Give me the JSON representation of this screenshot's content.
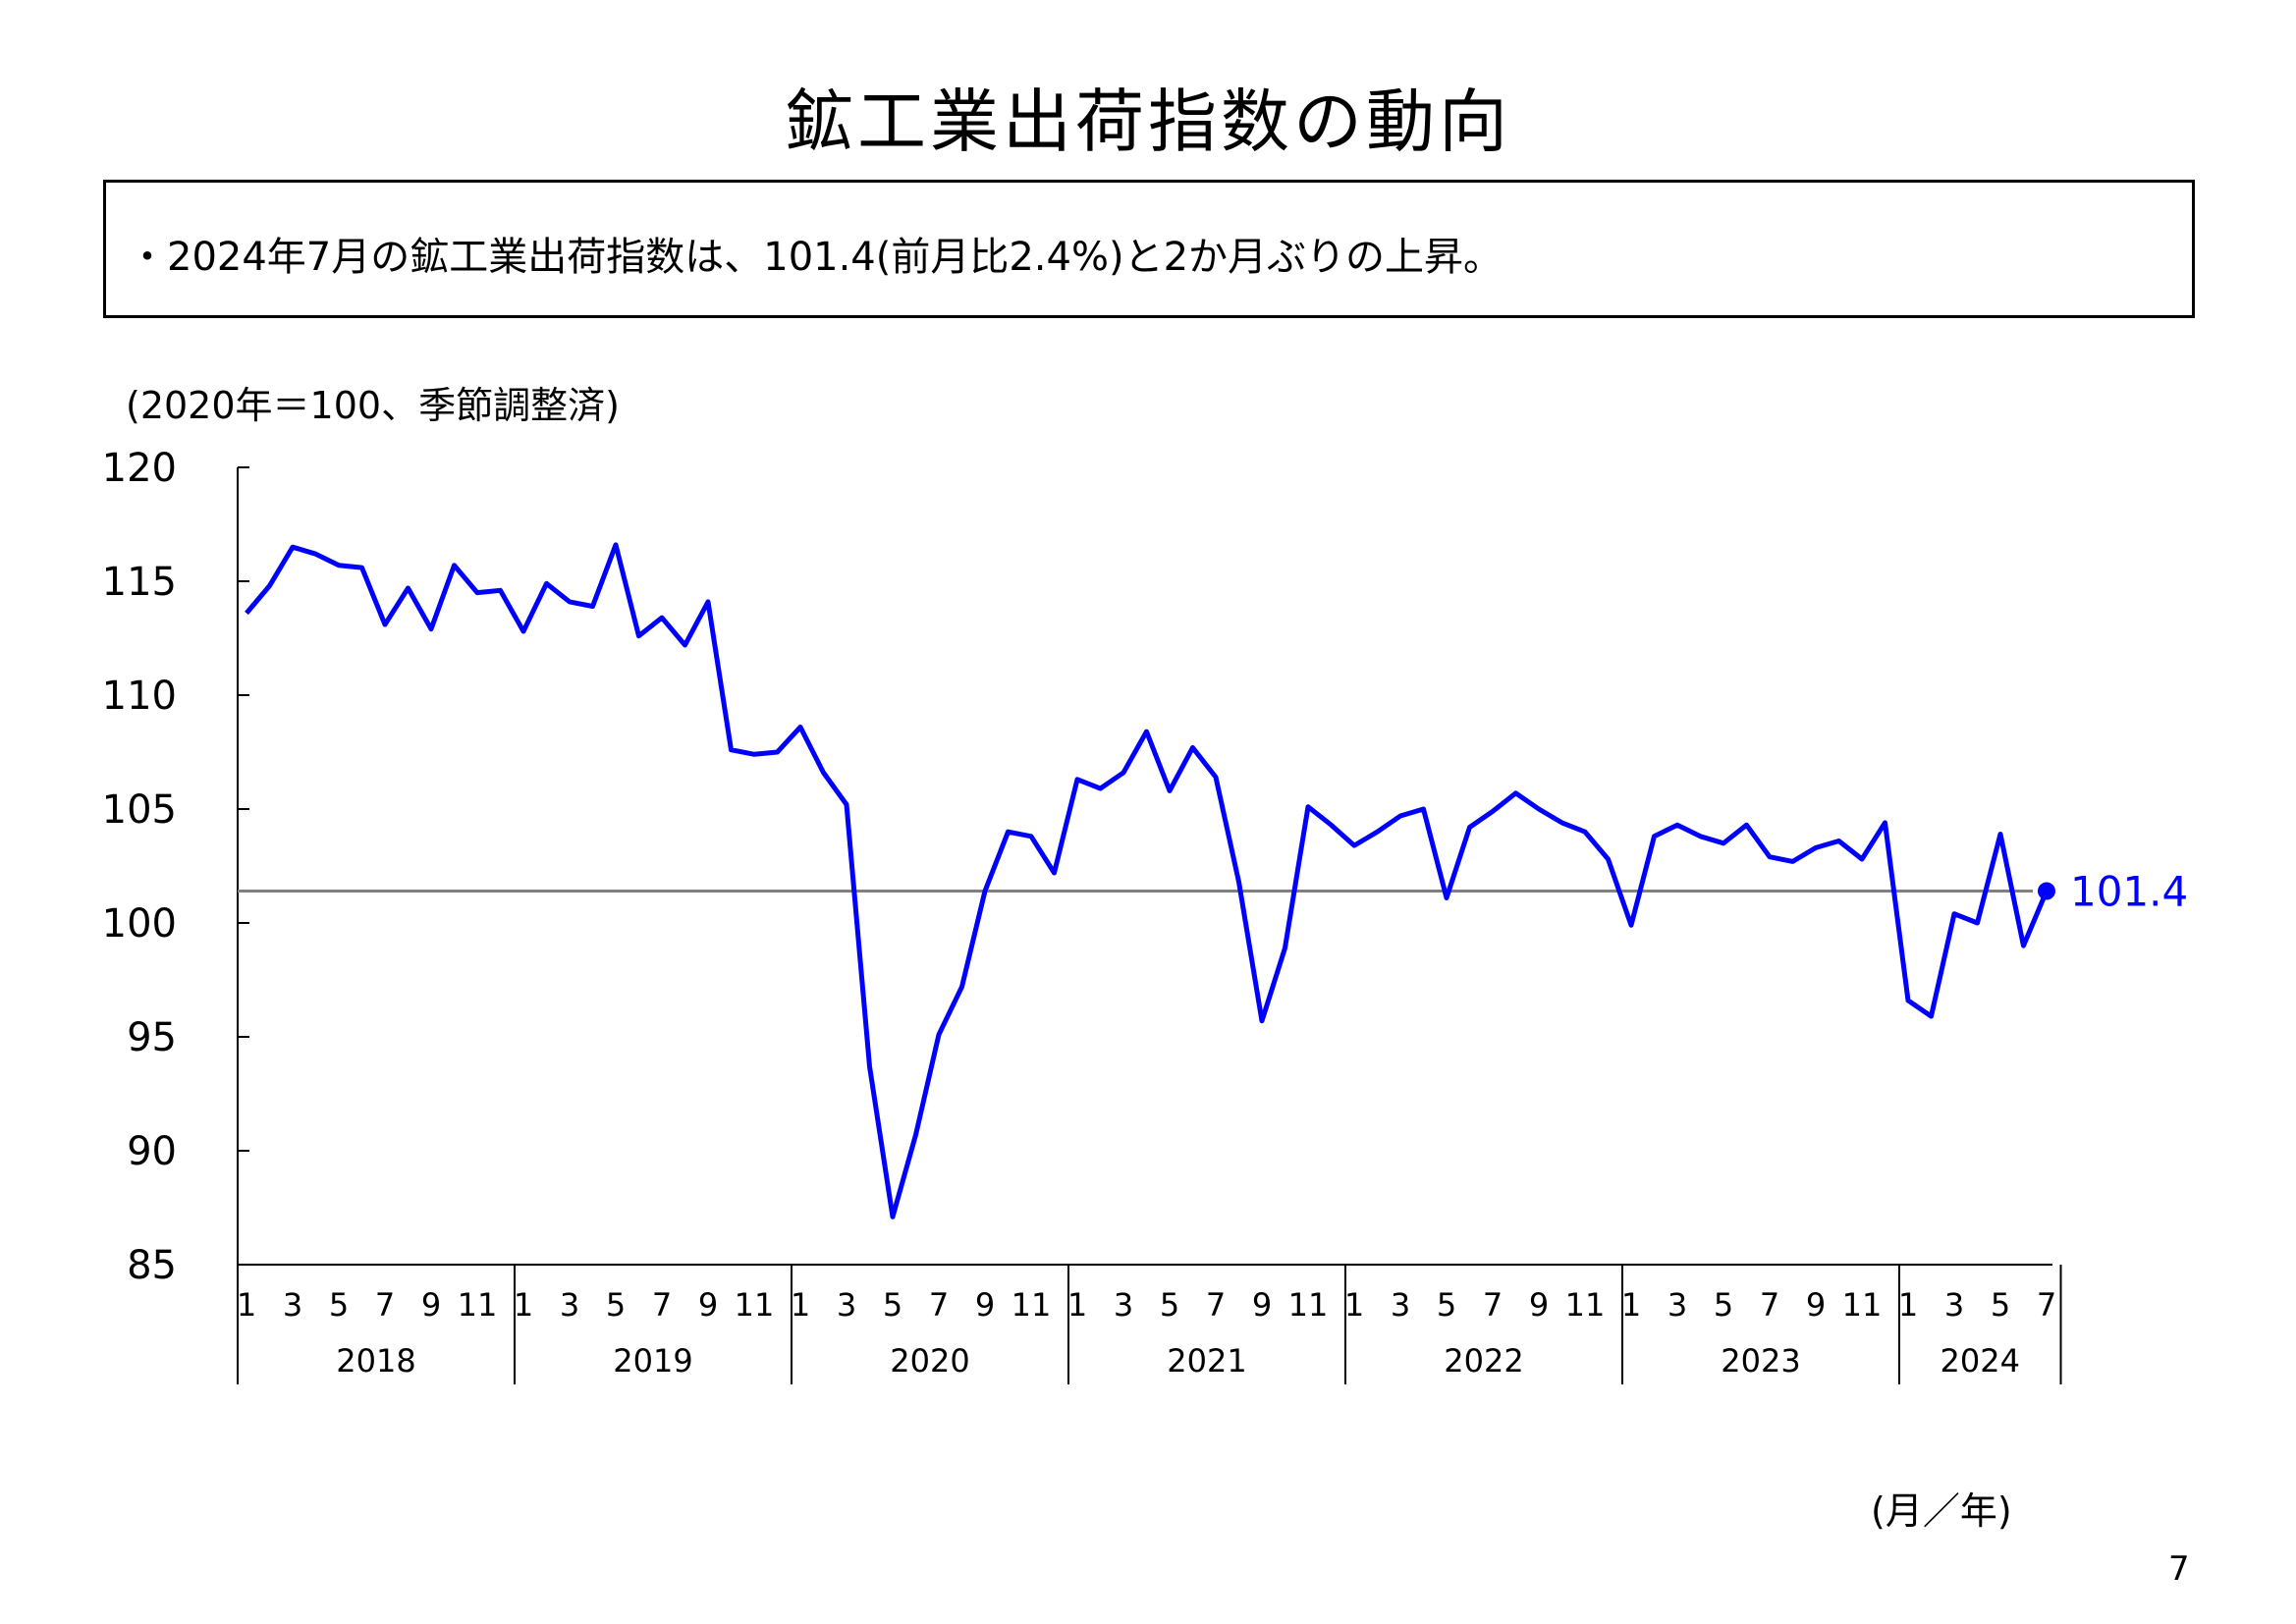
{
  "page": {
    "title": "鉱工業出荷指数の動向",
    "summary": "・2024年7月の鉱工業出荷指数は、101.4(前月比2.4%)と2か月ぶりの上昇。",
    "unit_label": "(2020年＝100、季節調整済)",
    "x_axis_note": "(月／年)",
    "page_number": "7"
  },
  "chart_data": {
    "type": "line",
    "title": "",
    "xlabel": "(月／年)",
    "ylabel": "(2020年＝100、季節調整済)",
    "ylim": [
      85,
      120
    ],
    "yticks": [
      85,
      90,
      95,
      100,
      105,
      110,
      115,
      120
    ],
    "month_tick_labels": [
      "1",
      "3",
      "5",
      "7",
      "9",
      "11"
    ],
    "years": [
      "2018",
      "2019",
      "2020",
      "2021",
      "2022",
      "2023",
      "2024"
    ],
    "months_per_year": [
      12,
      12,
      12,
      12,
      12,
      12,
      7
    ],
    "line_color": "#0000ff",
    "reference_line": {
      "value": 101.4,
      "color": "#808080"
    },
    "last_value_label": "101.4",
    "grid": false,
    "series": [
      {
        "values": [
          113.6,
          114.8,
          116.5,
          116.2,
          115.7,
          115.6,
          113.1,
          114.7,
          112.9,
          115.7,
          114.5,
          114.6,
          112.8,
          114.9,
          114.1,
          113.9,
          116.6,
          112.6,
          113.4,
          112.2,
          114.1,
          107.6,
          107.4,
          107.5,
          108.6,
          106.6,
          105.2,
          93.7,
          87.1,
          90.7,
          95.1,
          97.2,
          101.4,
          104.0,
          103.8,
          102.2,
          106.3,
          105.9,
          106.6,
          108.4,
          105.8,
          107.7,
          106.4,
          101.8,
          95.7,
          98.9,
          105.1,
          104.3,
          103.4,
          104.0,
          104.7,
          105.0,
          101.1,
          104.2,
          104.9,
          105.7,
          105.0,
          104.4,
          104.0,
          102.8,
          99.9,
          103.8,
          104.3,
          103.8,
          103.5,
          104.3,
          102.9,
          102.7,
          103.3,
          103.6,
          102.8,
          104.4,
          96.6,
          95.9,
          100.4,
          100.0,
          103.9,
          99.0,
          101.4
        ]
      }
    ]
  }
}
